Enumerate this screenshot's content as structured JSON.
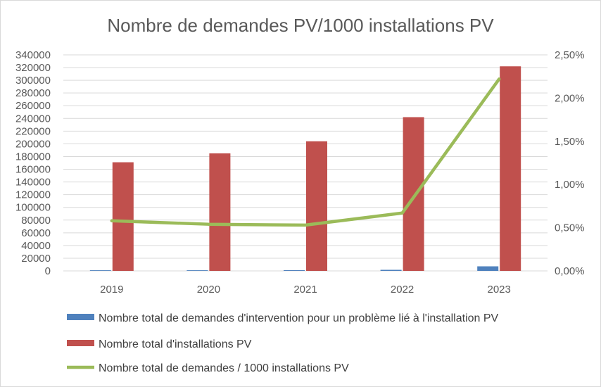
{
  "chart_data": {
    "type": "bar",
    "title": "Nombre de demandes PV/1000 installations PV",
    "categories": [
      "2019",
      "2020",
      "2021",
      "2022",
      "2023"
    ],
    "y_left": {
      "min": 0,
      "max": 340000,
      "step": 20000,
      "tick_labels": [
        "0",
        "20000",
        "40000",
        "60000",
        "80000",
        "100000",
        "120000",
        "140000",
        "160000",
        "180000",
        "200000",
        "220000",
        "240000",
        "260000",
        "280000",
        "300000",
        "320000",
        "340000"
      ]
    },
    "y_right": {
      "min": 0,
      "max": 0.025,
      "step": 0.005,
      "tick_labels": [
        "0,00%",
        "0,50%",
        "1,00%",
        "1,50%",
        "2,00%",
        "2,50%"
      ]
    },
    "series": [
      {
        "name": "Nombre total de  demandes d'intervention pour un problème lié à l'installation PV",
        "kind": "bar",
        "axis": "left",
        "color": "#4f81bd",
        "values": [
          1000,
          1000,
          1100,
          1700,
          7200
        ]
      },
      {
        "name": "Nombre total d'installations PV",
        "kind": "bar",
        "axis": "left",
        "color": "#c0504d",
        "values": [
          171000,
          185000,
          204000,
          242000,
          322000
        ]
      },
      {
        "name": "Nombre total de  demandes / 1000 installations PV",
        "kind": "line",
        "axis": "right",
        "color": "#9bbb59",
        "values": [
          0.0058,
          0.0054,
          0.0053,
          0.0067,
          0.0222
        ]
      }
    ],
    "legend_position": "bottom",
    "grid": true
  }
}
